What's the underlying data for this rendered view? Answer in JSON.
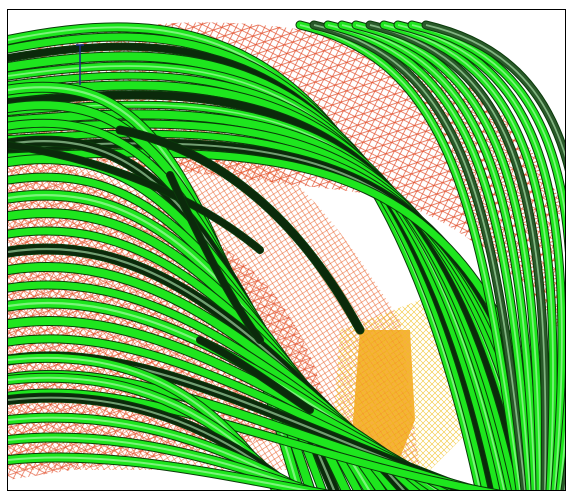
{
  "scene": {
    "background_color": "#ffffff",
    "mesh_color": "#e0401a",
    "mesh_highlight_color": "#f5a21a",
    "tube_color": "#1ee61e",
    "tube_highlight_color": "#c8ffc8",
    "dark_tube_color": "#0b2a0b",
    "axis_color": "#1a2a8a"
  }
}
